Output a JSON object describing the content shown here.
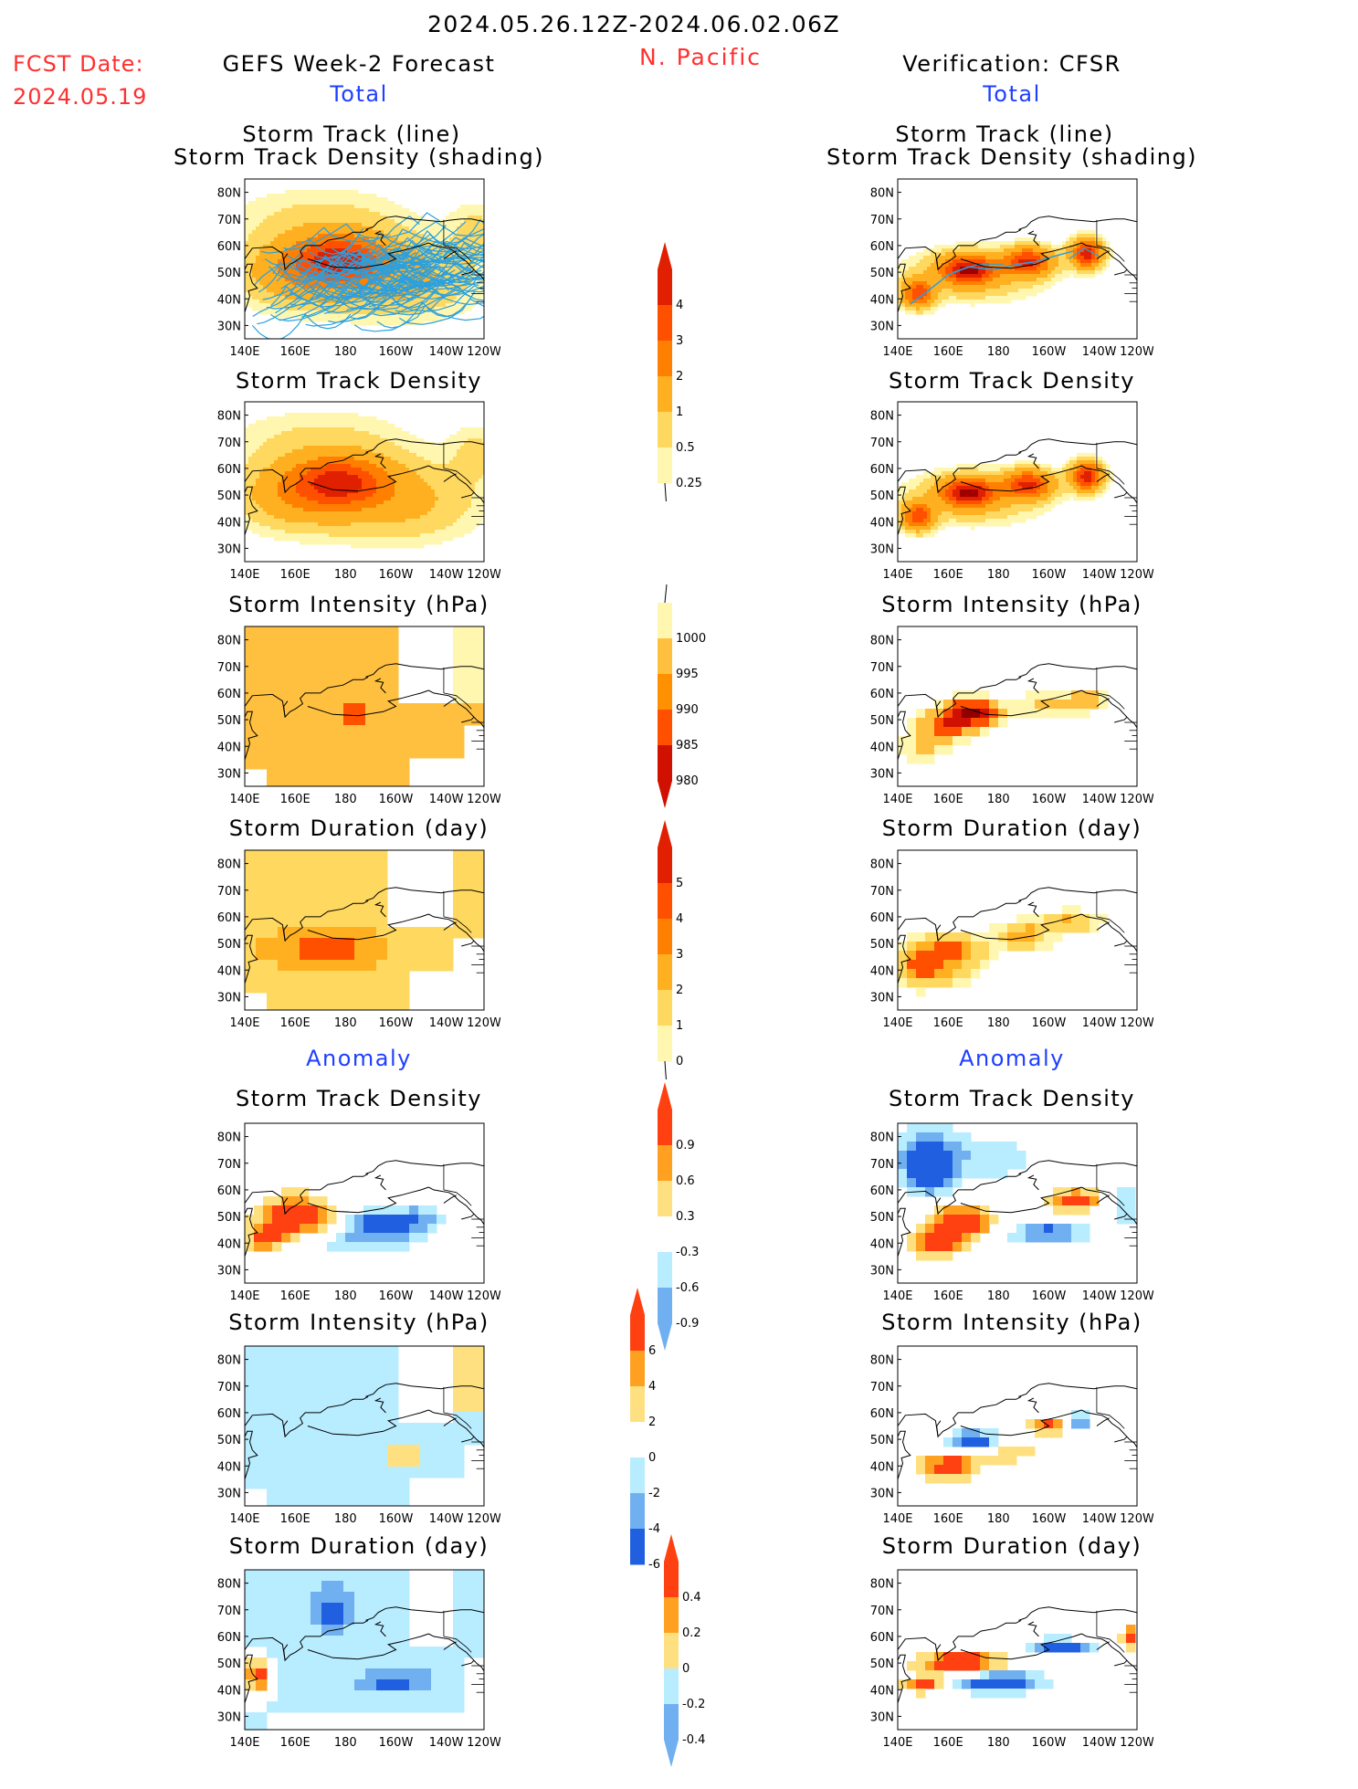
{
  "header": {
    "date_range": "2024.05.26.12Z-2024.06.02.06Z",
    "fcst_label": "FCST Date:",
    "fcst_date": "2024.05.19",
    "region": "N. Pacific",
    "left_title": "GEFS Week-2 Forecast",
    "right_title": "Verification: CFSR",
    "total_label": "Total",
    "anomaly_label": "Anomaly"
  },
  "axes": {
    "lon_ticks": [
      "140E",
      "160E",
      "180",
      "160W",
      "140W",
      "120W"
    ],
    "lat_ticks": [
      "80N",
      "70N",
      "60N",
      "50N",
      "40N",
      "30N"
    ]
  },
  "panels": {
    "track_line_title1": "Storm Track (line)",
    "track_line_title2": "Storm Track Density (shading)",
    "density_title": "Storm Track Density",
    "intensity_title": "Storm Intensity (hPa)",
    "duration_title": "Storm Duration (day)"
  },
  "colorbars": {
    "density_total": [
      "4",
      "3",
      "2",
      "1",
      "0.5",
      "0.25"
    ],
    "intensity_total": [
      "1000",
      "995",
      "990",
      "985",
      "980"
    ],
    "duration_total": [
      "5",
      "4",
      "3",
      "2",
      "1",
      "0"
    ],
    "density_anom": [
      "0.9",
      "0.6",
      "0.3",
      "-0.3",
      "-0.6",
      "-0.9"
    ],
    "intensity_anom": [
      "6",
      "4",
      "2",
      "0",
      "-2",
      "-4",
      "-6"
    ],
    "duration_anom": [
      "0.4",
      "0.2",
      "0",
      "-0.2",
      "-0.4"
    ]
  },
  "colors": {
    "warm": [
      "#fff7b0",
      "#ffd860",
      "#ffb020",
      "#ff8000",
      "#ff5000",
      "#e02000",
      "#a00000"
    ],
    "intensity": [
      "#fff7b0",
      "#ffc040",
      "#ff9000",
      "#ff5000",
      "#d01000",
      "#900000"
    ],
    "anom_pos": [
      "#ffe080",
      "#ffa020",
      "#ff4010"
    ],
    "anom_neg": [
      "#b8ecff",
      "#70b0f0",
      "#2060e0"
    ],
    "track_line": "#2aa0e0",
    "title_blue": "#1f3fff",
    "title_red": "#ff3030"
  }
}
